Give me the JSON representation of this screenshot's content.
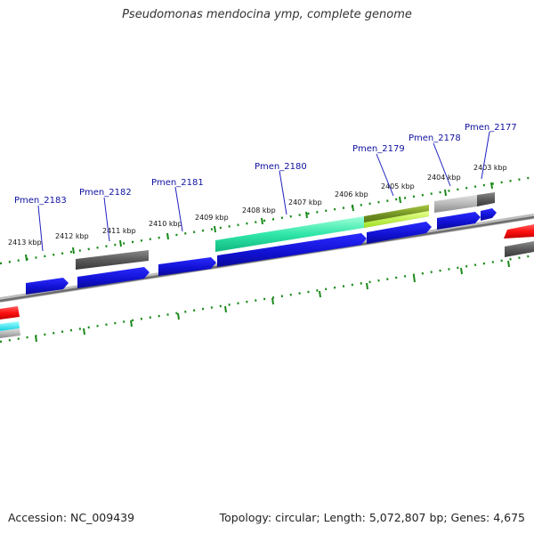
{
  "header": {
    "title": "Pseudomonas mendocina ymp, complete genome"
  },
  "footer": {
    "accession": "Accession: NC_009439",
    "summary": "Topology: circular; Length: 5,072,807 bp; Genes: 4,675"
  },
  "colors": {
    "backbone": "#8a8a8a",
    "tick": "#1a8a1a",
    "cds": "#1515e0",
    "gene_label": "#1010a0",
    "rrna": "#ff1a1a",
    "trna": "#22e0e0",
    "misc": "#6a6a6a"
  },
  "scale": {
    "tick_labels": [
      "2413 kbp",
      "2412 kbp",
      "2411 kbp",
      "2410 kbp",
      "2409 kbp",
      "2408 kbp",
      "2407 kbp",
      "2406 kbp",
      "2405 kbp",
      "2404 kbp",
      "2403 kbp"
    ]
  },
  "gene_labels": [
    "Pmen_2183",
    "Pmen_2182",
    "Pmen_2181",
    "Pmen_2180",
    "Pmen_2179",
    "Pmen_2178",
    "Pmen_2177"
  ],
  "features": [
    {
      "name": "cds-forward",
      "type": "CDS",
      "strand": "+"
    },
    {
      "name": "gene-track",
      "type": "gene"
    },
    {
      "name": "rrna-feature",
      "type": "rRNA"
    },
    {
      "name": "trna-feature",
      "type": "tRNA"
    }
  ]
}
